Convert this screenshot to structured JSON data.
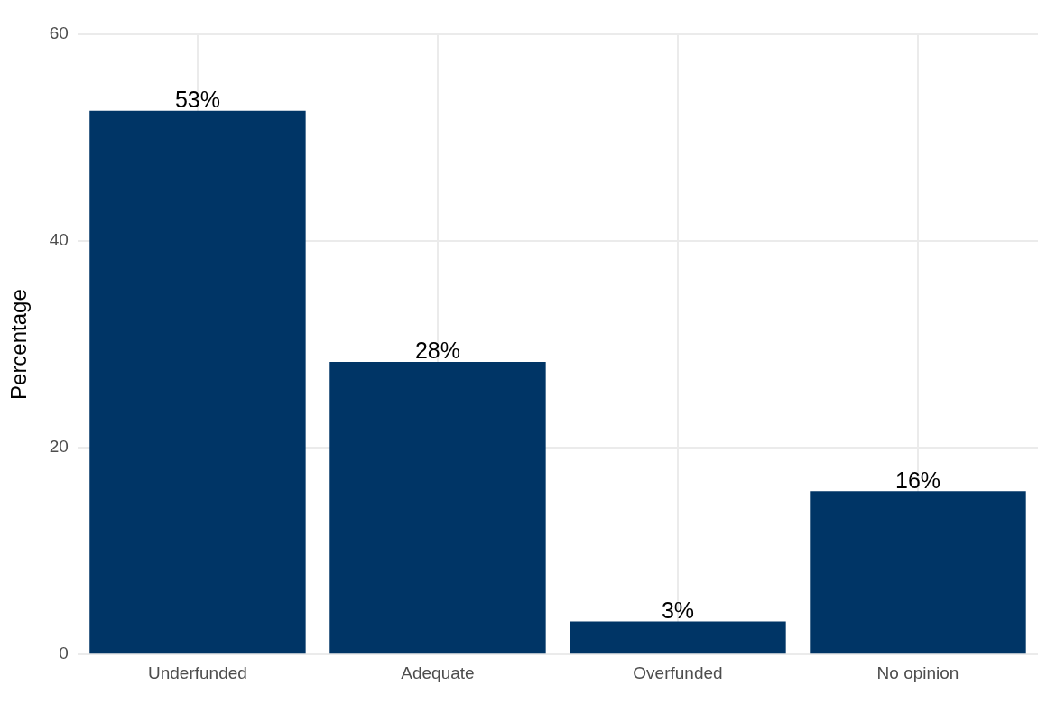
{
  "chart_data": {
    "type": "bar",
    "y_label": "Percentage",
    "categories": [
      "Underfunded",
      "Adequate",
      "Overfunded",
      "No opinion"
    ],
    "values": [
      52.6,
      28.3,
      3.2,
      15.8
    ],
    "value_labels": [
      "53%",
      "28%",
      "3%",
      "16%"
    ],
    "data_labels": true,
    "color": "#003566",
    "ylim": [
      0,
      60
    ],
    "yticks": [
      0,
      20,
      40,
      60
    ],
    "grid": true
  }
}
